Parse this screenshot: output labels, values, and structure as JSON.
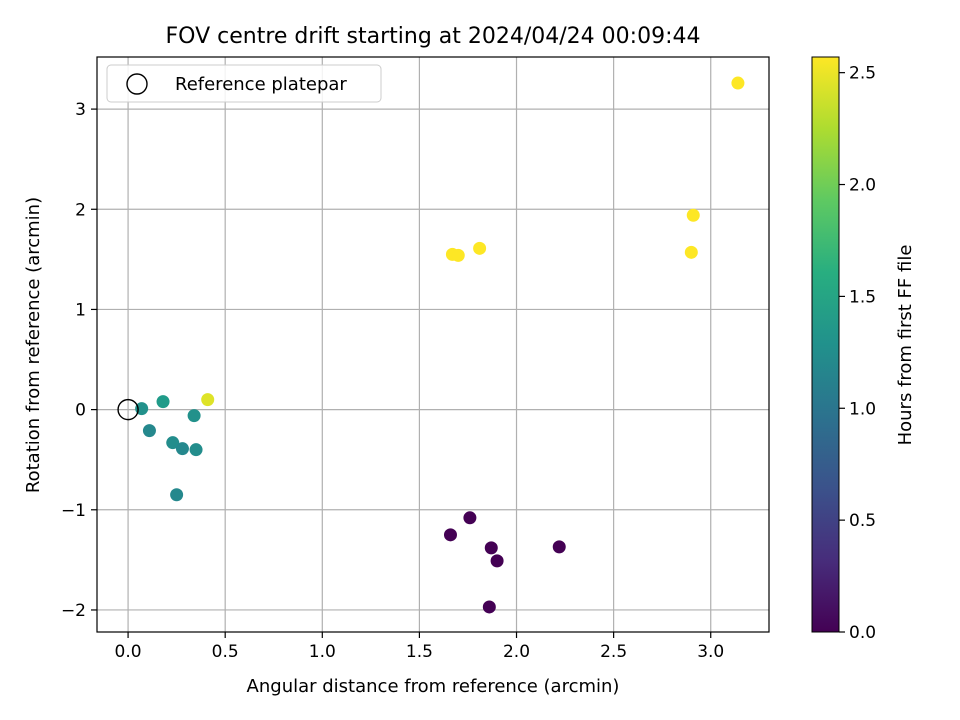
{
  "chart_data": {
    "type": "scatter",
    "title": "FOV centre drift starting at 2024/04/24 00:09:44",
    "xlabel": "Angular distance from reference (arcmin)",
    "ylabel": "Rotation from reference (arcmin)",
    "xlim": [
      -0.16,
      3.3
    ],
    "ylim": [
      -2.22,
      3.52
    ],
    "xticks": [
      0.0,
      0.5,
      1.0,
      1.5,
      2.0,
      2.5,
      3.0
    ],
    "xtick_labels": [
      "0.0",
      "0.5",
      "1.0",
      "1.5",
      "2.0",
      "2.5",
      "3.0"
    ],
    "yticks": [
      -2,
      -1,
      0,
      1,
      2,
      3
    ],
    "ytick_labels": [
      "−2",
      "−1",
      "0",
      "1",
      "2",
      "3"
    ],
    "grid": true,
    "legend": {
      "placement": "upper-left",
      "entries": [
        "Reference platepar"
      ]
    },
    "reference_point": {
      "x": 0.0,
      "y": 0.0
    },
    "colorbar": {
      "label": "Hours from first FF file",
      "colormap": "viridis",
      "range": [
        0.0,
        2.57
      ],
      "ticks": [
        0.0,
        0.5,
        1.0,
        1.5,
        2.0,
        2.5
      ],
      "tick_labels": [
        "0.0",
        "0.5",
        "1.0",
        "1.5",
        "2.0",
        "2.5"
      ]
    },
    "points": [
      {
        "x": 1.66,
        "y": -1.25,
        "hours": 0.0
      },
      {
        "x": 1.76,
        "y": -1.08,
        "hours": 0.0
      },
      {
        "x": 1.87,
        "y": -1.38,
        "hours": 0.0
      },
      {
        "x": 1.9,
        "y": -1.51,
        "hours": 0.0
      },
      {
        "x": 1.86,
        "y": -1.97,
        "hours": 0.0
      },
      {
        "x": 2.22,
        "y": -1.37,
        "hours": 0.0
      },
      {
        "x": 0.07,
        "y": 0.01,
        "hours": 1.3
      },
      {
        "x": 0.18,
        "y": 0.08,
        "hours": 1.4
      },
      {
        "x": 0.11,
        "y": -0.21,
        "hours": 1.2
      },
      {
        "x": 0.23,
        "y": -0.33,
        "hours": 1.25
      },
      {
        "x": 0.28,
        "y": -0.39,
        "hours": 1.2
      },
      {
        "x": 0.35,
        "y": -0.4,
        "hours": 1.25
      },
      {
        "x": 0.34,
        "y": -0.06,
        "hours": 1.3
      },
      {
        "x": 0.25,
        "y": -0.85,
        "hours": 1.2
      },
      {
        "x": 0.41,
        "y": 0.1,
        "hours": 2.45
      },
      {
        "x": 1.67,
        "y": 1.55,
        "hours": 2.57
      },
      {
        "x": 1.7,
        "y": 1.54,
        "hours": 2.57
      },
      {
        "x": 1.81,
        "y": 1.61,
        "hours": 2.57
      },
      {
        "x": 2.9,
        "y": 1.57,
        "hours": 2.57
      },
      {
        "x": 2.91,
        "y": 1.94,
        "hours": 2.57
      },
      {
        "x": 3.14,
        "y": 3.26,
        "hours": 2.57
      }
    ]
  }
}
